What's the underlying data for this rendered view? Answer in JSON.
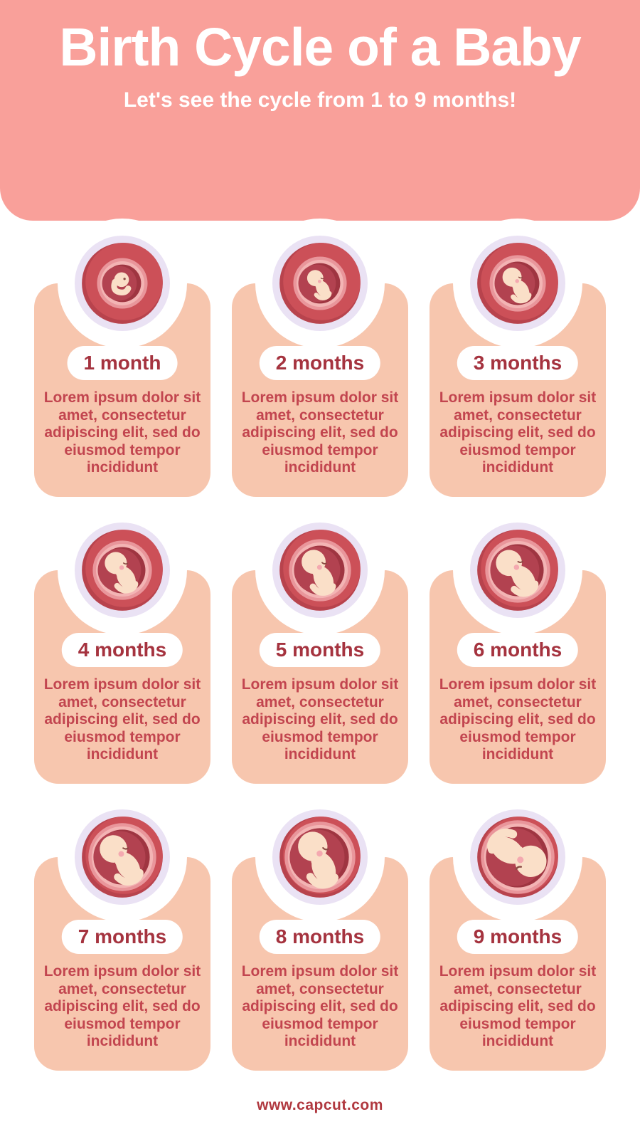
{
  "header": {
    "title": "Birth Cycle of a Baby",
    "subtitle": "Let's see the cycle from 1 to 9 months!"
  },
  "cards": [
    {
      "label": "1 month",
      "description": "Lorem ipsum dolor sit amet, consectetur adipiscing elit, sed do eiusmod tempor incididunt",
      "icon": "fetus-month-1-icon"
    },
    {
      "label": "2 months",
      "description": "Lorem ipsum dolor sit amet, consectetur adipiscing elit, sed do eiusmod tempor incididunt",
      "icon": "fetus-month-2-icon"
    },
    {
      "label": "3 months",
      "description": "Lorem ipsum dolor sit amet, consectetur adipiscing elit, sed do eiusmod tempor incididunt",
      "icon": "fetus-month-3-icon"
    },
    {
      "label": "4 months",
      "description": "Lorem ipsum dolor sit amet, consectetur adipiscing elit, sed do eiusmod tempor incididunt",
      "icon": "fetus-month-4-icon"
    },
    {
      "label": "5 months",
      "description": "Lorem ipsum dolor sit amet, consectetur adipiscing elit, sed do eiusmod tempor incididunt",
      "icon": "fetus-month-5-icon"
    },
    {
      "label": "6 months",
      "description": "Lorem ipsum dolor sit amet, consectetur adipiscing elit, sed do eiusmod tempor incididunt",
      "icon": "fetus-month-6-icon"
    },
    {
      "label": "7 months",
      "description": "Lorem ipsum dolor sit amet, consectetur adipiscing elit, sed do eiusmod tempor incididunt",
      "icon": "fetus-month-7-icon"
    },
    {
      "label": "8 months",
      "description": "Lorem ipsum dolor sit amet, consectetur adipiscing elit, sed do eiusmod tempor incididunt",
      "icon": "fetus-month-8-icon"
    },
    {
      "label": "9 months",
      "description": "Lorem ipsum dolor sit amet, consectetur adipiscing elit, sed do eiusmod tempor incididunt",
      "icon": "fetus-month-9-icon"
    }
  ],
  "footer": {
    "website": "www.capcut.com"
  },
  "colors": {
    "header_bg": "#F9A09A",
    "header_text": "#FFFFFF",
    "card_bg": "#F7C6AE",
    "accent": "#A5333F",
    "body_text": "#C2454F",
    "footer_text": "#B0383F",
    "illustration": {
      "lavender_ring": "#EAE2F4",
      "womb_dark": "#B8434D",
      "womb_red": "#CC5058",
      "ring_pink": "#E9969B",
      "ring_light": "#F3B4B4",
      "sac_dark": "#9F3541",
      "sac_inner": "#B24250",
      "skin": "#FADFC8",
      "cheek": "#F4A9B0",
      "eye": "#8A4A43",
      "cord": "#C25059"
    }
  }
}
